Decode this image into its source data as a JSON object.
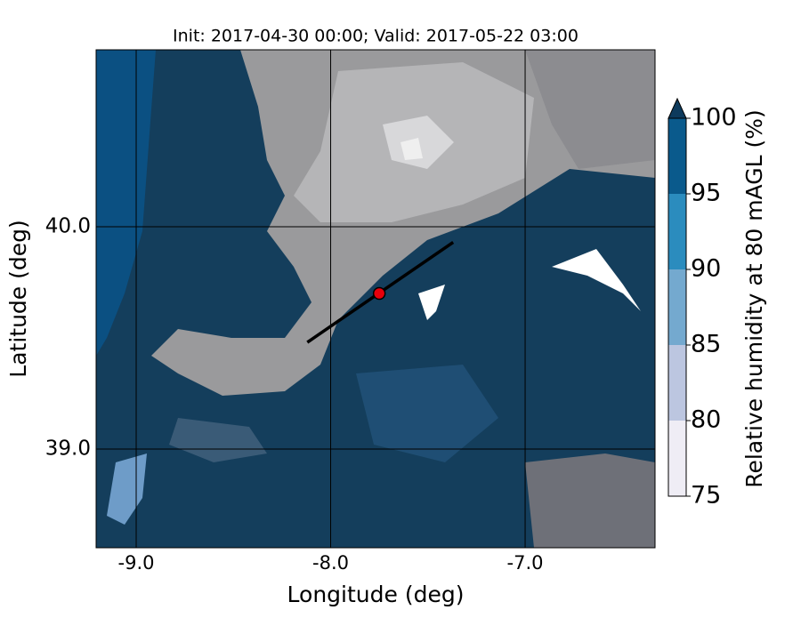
{
  "chart_data": {
    "type": "map",
    "title": "Init: 2017-04-30 00:00; Valid: 2017-05-22 03:00",
    "xlabel": "Longitude (deg)",
    "ylabel": "Latitude (deg)",
    "xlim": [
      -9.206,
      -6.332
    ],
    "ylim": [
      38.556,
      40.796
    ],
    "xticks": [
      {
        "value": -9,
        "label": "-9.0"
      },
      {
        "value": -8,
        "label": "-8.0"
      },
      {
        "value": -7,
        "label": "-7.0"
      }
    ],
    "yticks": [
      {
        "value": 39,
        "label": "39.0"
      },
      {
        "value": 40,
        "label": "40.0"
      }
    ],
    "grid": true,
    "line": {
      "x": [
        -8.12,
        -7.37
      ],
      "y": [
        39.48,
        39.93
      ],
      "color": "#000000"
    },
    "point": {
      "x": -7.75,
      "y": 39.7,
      "color": "#e8000b"
    },
    "colorbar": {
      "label": "Relative humidity at 80 mAGL (%)",
      "levels": [
        75,
        80,
        85,
        90,
        95,
        100
      ],
      "colors": [
        "#efedf5",
        "#bcc6e0",
        "#74a9cf",
        "#2b8cbe",
        "#0a5a8c"
      ],
      "extend_color": "#0d3a5c"
    }
  }
}
